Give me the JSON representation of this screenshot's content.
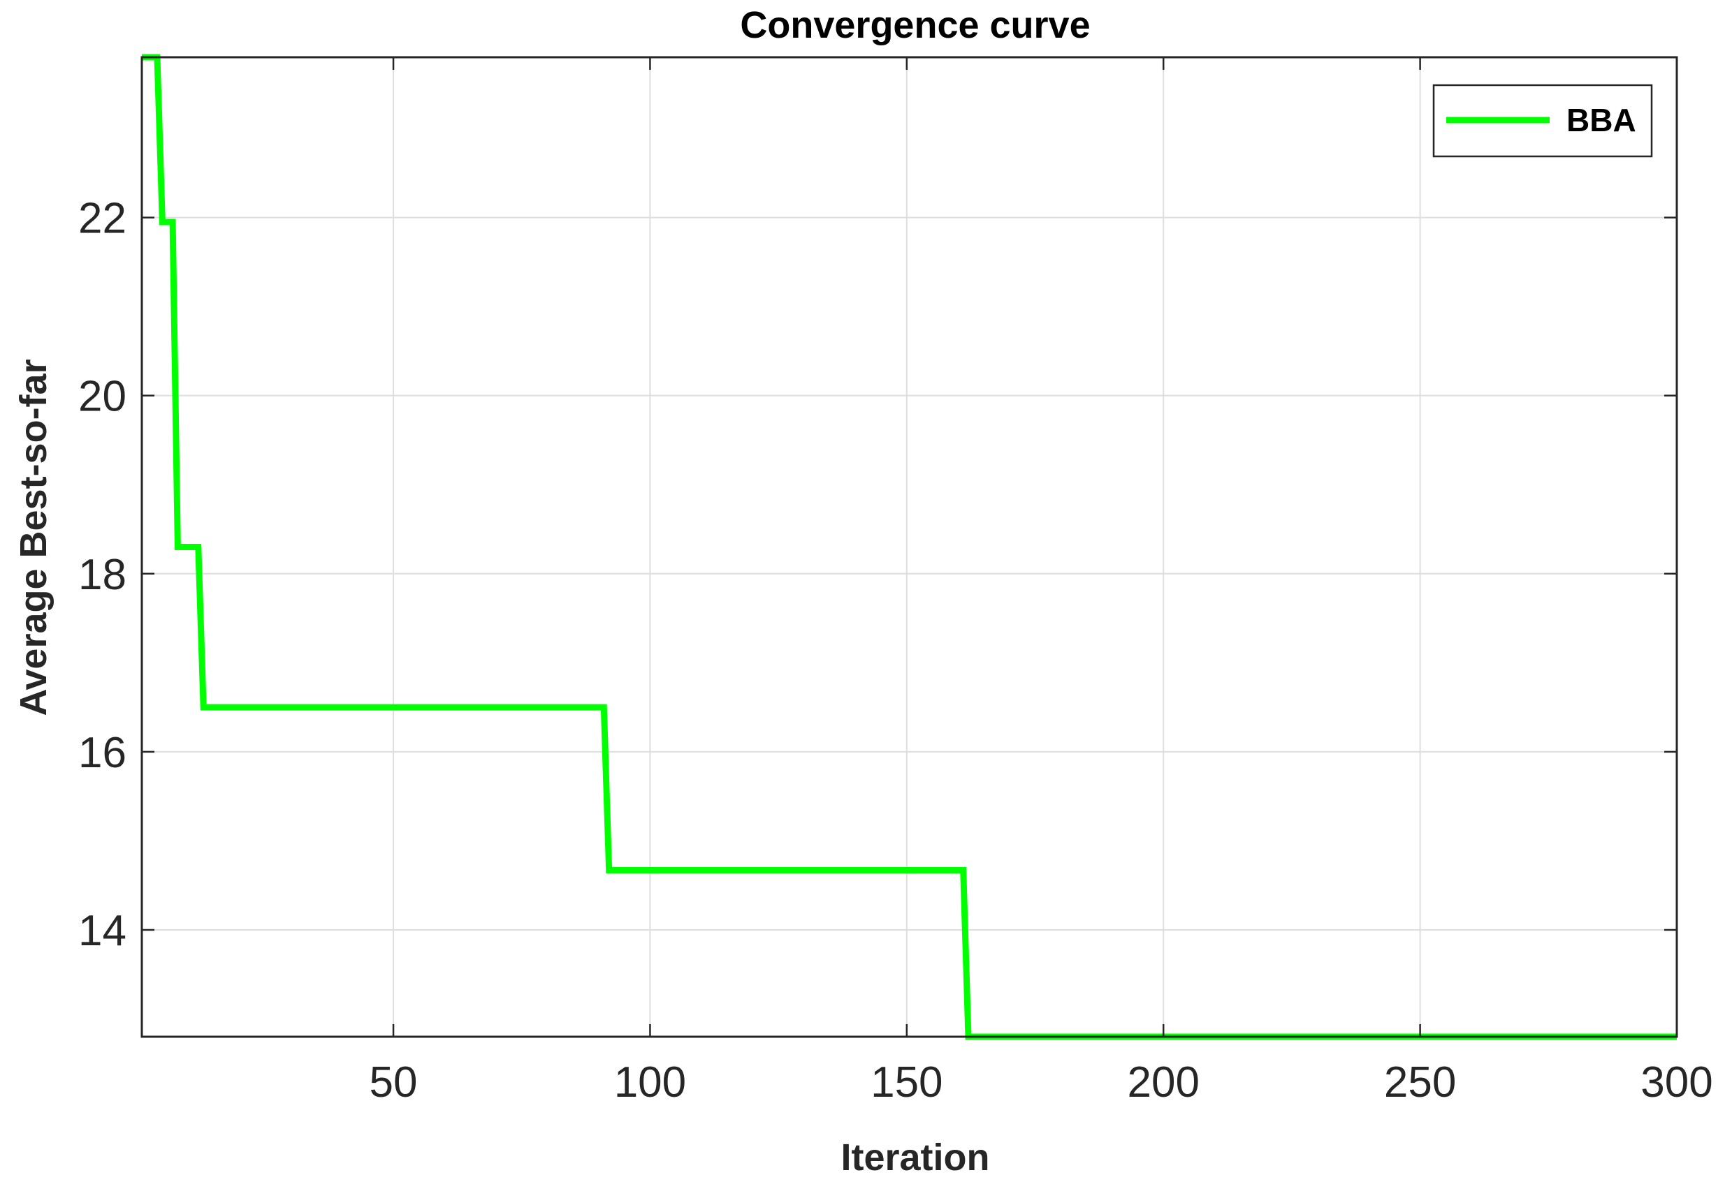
{
  "chart_data": {
    "type": "line",
    "title": "Convergence curve",
    "xlabel": "Iteration",
    "ylabel": "Average Best-so-far",
    "xlim": [
      1,
      300
    ],
    "ylim": [
      12.8,
      23.8
    ],
    "xticks": [
      50,
      100,
      150,
      200,
      250,
      300
    ],
    "yticks": [
      14,
      16,
      18,
      20,
      22
    ],
    "grid": true,
    "legend_position": "top-right",
    "series": [
      {
        "name": "BBA",
        "color": "#00ff00",
        "x": [
          1,
          4,
          4,
          5,
          5,
          7,
          7,
          8,
          8,
          12,
          12,
          13,
          13,
          91,
          91,
          92,
          92,
          161,
          161,
          162,
          162,
          300
        ],
        "y": [
          23.8,
          23.8,
          23.8,
          21.95,
          21.95,
          21.95,
          21.95,
          18.3,
          18.3,
          18.3,
          18.3,
          16.5,
          16.5,
          16.5,
          16.5,
          14.67,
          14.67,
          14.67,
          14.67,
          12.8,
          12.8,
          12.8
        ]
      }
    ]
  }
}
